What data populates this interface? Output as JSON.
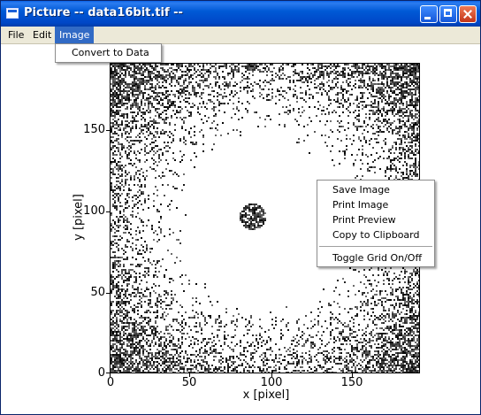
{
  "window": {
    "title": "Picture -- data16bit.tif --"
  },
  "menubar": {
    "items": [
      "File",
      "Edit",
      "Image"
    ]
  },
  "image_menu": {
    "items": [
      "Convert to Data"
    ]
  },
  "context_menu": {
    "items": [
      "Save Image",
      "Print Image",
      "Print Preview",
      "Copy to Clipboard",
      "Toggle Grid On/Off"
    ]
  },
  "plot": {
    "xlabel": "x [pixel]",
    "ylabel": "y [pixel]",
    "xticks": [
      "0",
      "50",
      "100",
      "150"
    ],
    "yticks": [
      "0",
      "50",
      "100",
      "150"
    ]
  }
}
